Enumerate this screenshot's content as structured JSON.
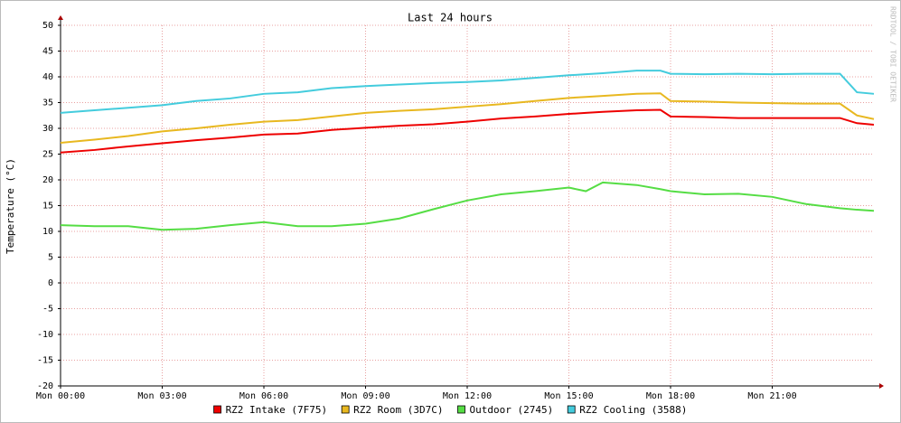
{
  "chart_data": {
    "type": "line",
    "title": "Last 24 hours",
    "y_label": "Temperature (°C)",
    "watermark": "RRDTOOL / TOBI OETIKER",
    "x": [
      0,
      1,
      2,
      3,
      4,
      5,
      6,
      7,
      8,
      9,
      10,
      11,
      12,
      13,
      14,
      15,
      15.5,
      16,
      17,
      17.7,
      18,
      19,
      20,
      21,
      22,
      23,
      23.5,
      24
    ],
    "series": [
      {
        "name": "RZ2 Intake (7F75)",
        "color": "#ee0000",
        "values": [
          25.3,
          25.8,
          26.5,
          27.1,
          27.7,
          28.2,
          28.8,
          29,
          29.7,
          30.1,
          30.5,
          30.8,
          31.3,
          31.9,
          32.3,
          32.8,
          33,
          33.2,
          33.5,
          33.6,
          32.3,
          32.2,
          32,
          32,
          32,
          32,
          31,
          30.7
        ]
      },
      {
        "name": "RZ2 Room (3D7C)",
        "color": "#e8b820",
        "values": [
          27.2,
          27.8,
          28.5,
          29.4,
          30,
          30.7,
          31.3,
          31.6,
          32.3,
          33,
          33.4,
          33.7,
          34.2,
          34.7,
          35.3,
          35.9,
          36.1,
          36.3,
          36.7,
          36.8,
          35.3,
          35.2,
          35,
          34.9,
          34.8,
          34.8,
          32.5,
          31.8
        ]
      },
      {
        "name": "Outdoor (2745)",
        "color": "#55dd44",
        "values": [
          11.2,
          11,
          11,
          10.3,
          10.5,
          11.2,
          11.8,
          11,
          11,
          11.5,
          12.5,
          14.3,
          16,
          17.2,
          17.8,
          18.5,
          17.8,
          19.5,
          19,
          18.2,
          17.8,
          17.2,
          17.3,
          16.7,
          15.3,
          14.5,
          14.2,
          14
        ]
      },
      {
        "name": "RZ2 Cooling (3588)",
        "color": "#44ccdd",
        "values": [
          33,
          33.5,
          34,
          34.5,
          35.3,
          35.8,
          36.7,
          37,
          37.8,
          38.2,
          38.5,
          38.8,
          39,
          39.3,
          39.8,
          40.3,
          40.5,
          40.7,
          41.2,
          41.2,
          40.6,
          40.5,
          40.6,
          40.5,
          40.6,
          40.6,
          37,
          36.7
        ]
      }
    ],
    "xlim": [
      0,
      24
    ],
    "xticks": [
      {
        "value": 0,
        "label": "Mon 00:00"
      },
      {
        "value": 3,
        "label": "Mon 03:00"
      },
      {
        "value": 6,
        "label": "Mon 06:00"
      },
      {
        "value": 9,
        "label": "Mon 09:00"
      },
      {
        "value": 12,
        "label": "Mon 12:00"
      },
      {
        "value": 15,
        "label": "Mon 15:00"
      },
      {
        "value": 18,
        "label": "Mon 18:00"
      },
      {
        "value": 21,
        "label": "Mon 21:00"
      }
    ],
    "ylim": [
      -20,
      50
    ],
    "yticks": [
      -20,
      -15,
      -10,
      -5,
      0,
      5,
      10,
      15,
      20,
      25,
      30,
      35,
      40,
      45,
      50
    ],
    "grid": true
  }
}
